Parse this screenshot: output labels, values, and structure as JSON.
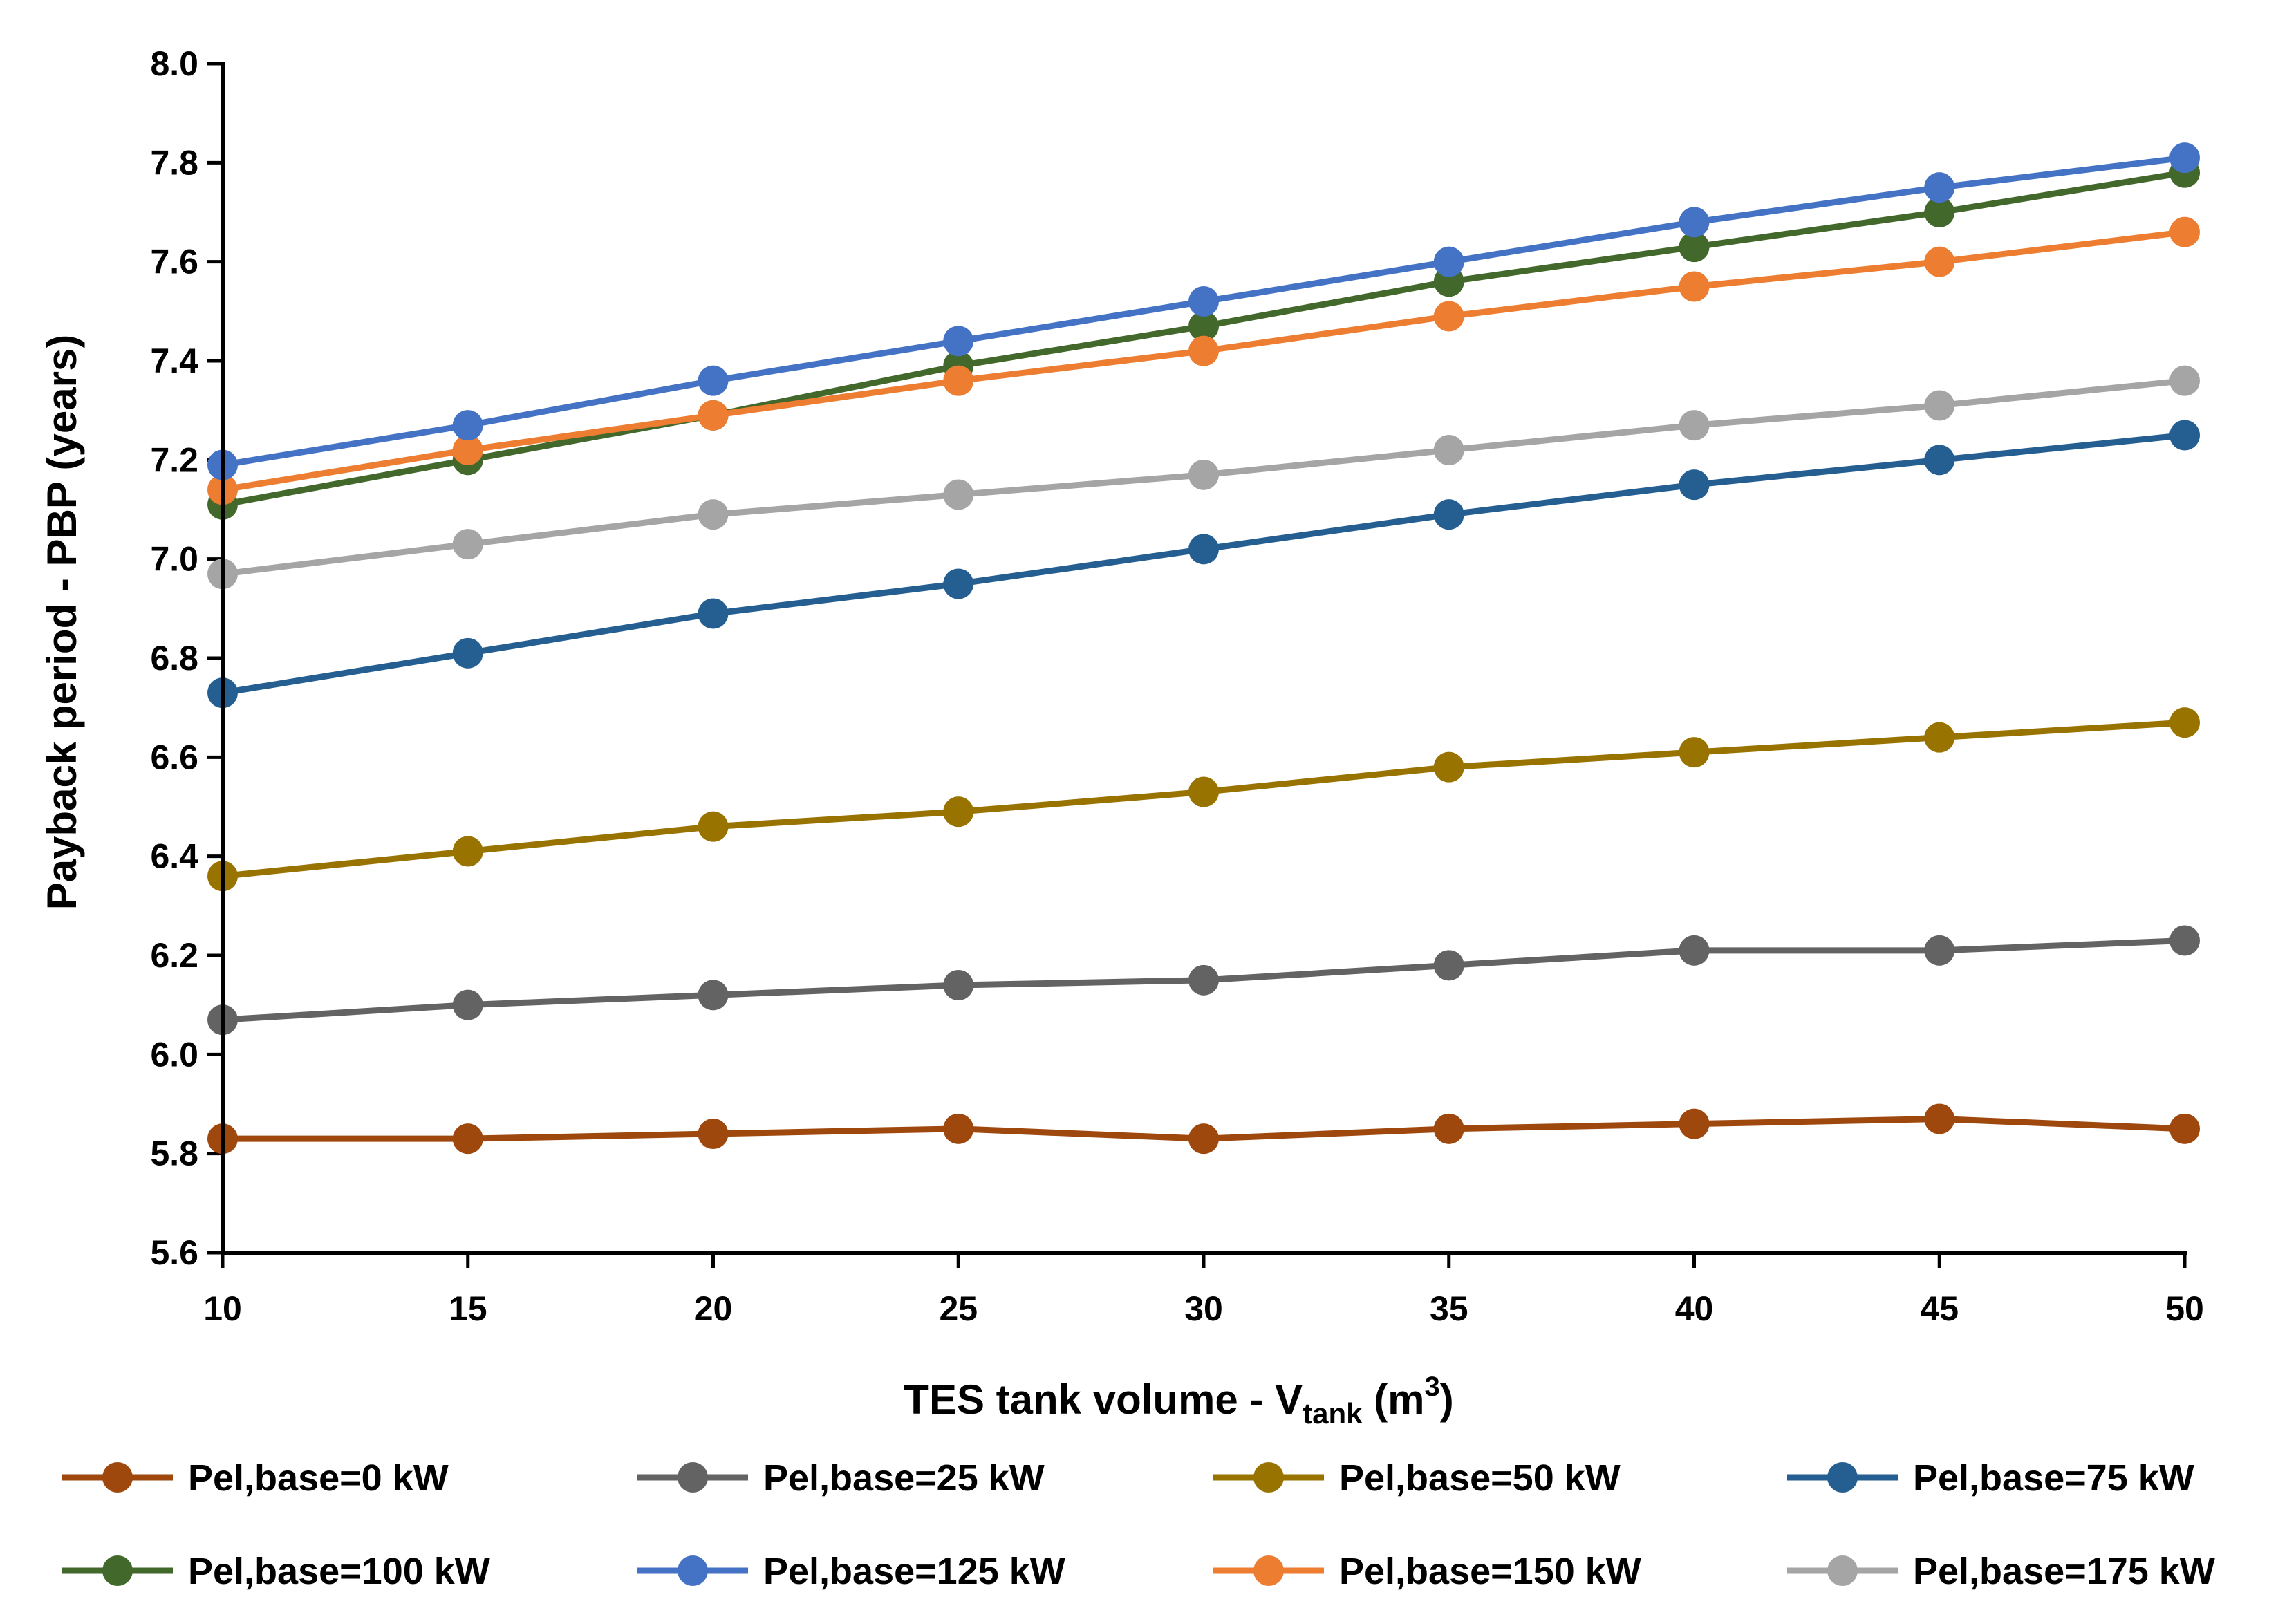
{
  "chart_data": {
    "type": "line",
    "title": "",
    "xlabel": {
      "main": "TES tank volume - V",
      "sub": "tank",
      "tail": " (m",
      "sup": "3",
      "end": ")"
    },
    "ylabel": "Payback period - PBP (years)",
    "x": [
      10,
      15,
      20,
      25,
      30,
      35,
      40,
      45,
      50
    ],
    "x_ticks": [
      "10",
      "15",
      "20",
      "25",
      "30",
      "35",
      "40",
      "45",
      "50"
    ],
    "xlim": [
      10,
      50
    ],
    "ylim": [
      5.6,
      8.0
    ],
    "y_ticks": [
      "5.6",
      "5.8",
      "6.0",
      "6.2",
      "6.4",
      "6.6",
      "6.8",
      "7.0",
      "7.2",
      "7.4",
      "7.6",
      "7.8",
      "8.0"
    ],
    "grid": false,
    "legend_position": "bottom",
    "series": [
      {
        "name": "Pel,base=0 kW",
        "color": "#9E480E",
        "values": [
          5.83,
          5.83,
          5.84,
          5.85,
          5.83,
          5.85,
          5.86,
          5.87,
          5.85
        ]
      },
      {
        "name": "Pel,base=25 kW",
        "color": "#636363",
        "values": [
          6.07,
          6.1,
          6.12,
          6.14,
          6.15,
          6.18,
          6.21,
          6.21,
          6.23
        ]
      },
      {
        "name": "Pel,base=50 kW",
        "color": "#997300",
        "values": [
          6.36,
          6.41,
          6.46,
          6.49,
          6.53,
          6.58,
          6.61,
          6.64,
          6.67
        ]
      },
      {
        "name": "Pel,base=75 kW",
        "color": "#255E91",
        "values": [
          6.73,
          6.81,
          6.89,
          6.95,
          7.02,
          7.09,
          7.15,
          7.2,
          7.25
        ]
      },
      {
        "name": "Pel,base=100 kW",
        "color": "#43682B",
        "values": [
          7.11,
          7.2,
          7.29,
          7.39,
          7.47,
          7.56,
          7.63,
          7.7,
          7.78
        ]
      },
      {
        "name": "Pel,base=125 kW",
        "color": "#4472C4",
        "values": [
          7.19,
          7.27,
          7.36,
          7.44,
          7.52,
          7.6,
          7.68,
          7.75,
          7.81
        ]
      },
      {
        "name": "Pel,base=150 kW",
        "color": "#ED7D31",
        "values": [
          7.14,
          7.22,
          7.29,
          7.36,
          7.42,
          7.49,
          7.55,
          7.6,
          7.66
        ]
      },
      {
        "name": "Pel,base=175 kW",
        "color": "#A5A5A5",
        "values": [
          6.97,
          7.03,
          7.09,
          7.13,
          7.17,
          7.22,
          7.27,
          7.31,
          7.36
        ]
      }
    ]
  }
}
